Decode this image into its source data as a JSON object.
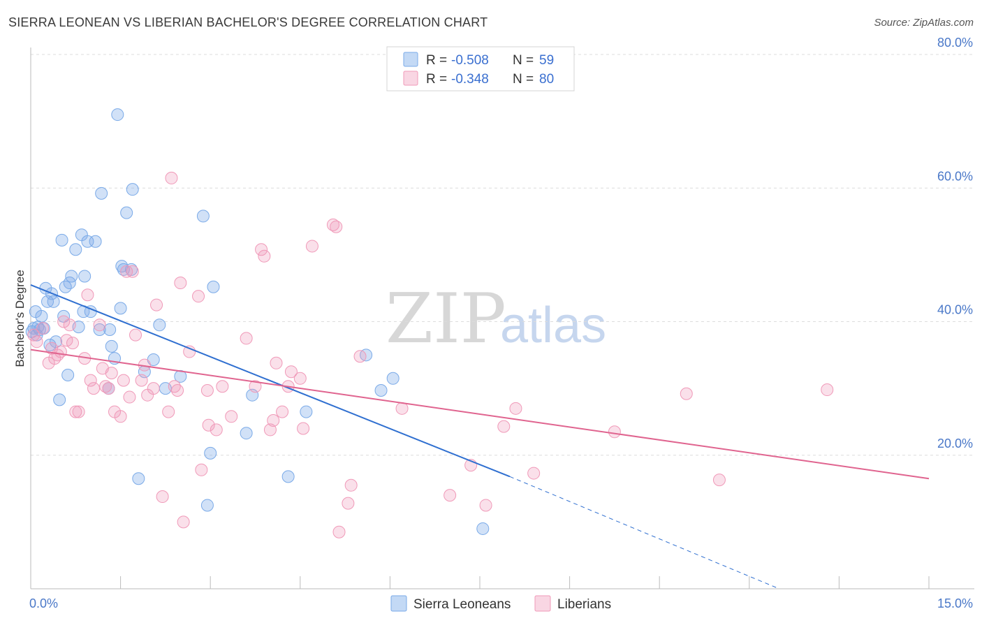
{
  "header": {
    "title": "SIERRA LEONEAN VS LIBERIAN BACHELOR'S DEGREE CORRELATION CHART",
    "source": "Source: ZipAtlas.com"
  },
  "watermark": {
    "zip": "ZIP",
    "atlas": "atlas"
  },
  "legend": {
    "r_label": "R =",
    "n_label": "N =",
    "rows": [
      {
        "r": "-0.508",
        "n": "59",
        "color": "#7aaae8"
      },
      {
        "r": "-0.348",
        "n": "80",
        "color": "#f099b8"
      }
    ]
  },
  "bottom_legend": [
    "Sierra Leoneans",
    "Liberians"
  ],
  "chart_data": {
    "type": "scatter",
    "title": "SIERRA LEONEAN VS LIBERIAN BACHELOR'S DEGREE CORRELATION CHART",
    "xlabel": "",
    "ylabel": "Bachelor's Degree",
    "xlim": [
      0,
      15
    ],
    "ylim": [
      0,
      80
    ],
    "x_tick_labels": [
      {
        "value": 0,
        "label": "0.0%"
      },
      {
        "value": 15,
        "label": "15.0%"
      }
    ],
    "y_tick_labels": [
      {
        "value": 20,
        "label": "20.0%"
      },
      {
        "value": 40,
        "label": "40.0%"
      },
      {
        "value": 60,
        "label": "60.0%"
      },
      {
        "value": 80,
        "label": "80.0%"
      }
    ],
    "series": [
      {
        "name": "Sierra Leoneans",
        "color": "#7aaae8",
        "line_color": "#2f6fd0",
        "r": -0.508,
        "n": 59,
        "trend": {
          "x0": 0,
          "y0": 45.5,
          "x1": 8.0,
          "y1": 16.8,
          "dash_x1": 12.5,
          "dash_y1": 0
        },
        "points": [
          [
            0.02,
            38.5
          ],
          [
            0.05,
            39.0
          ],
          [
            0.08,
            41.5
          ],
          [
            0.1,
            38.0
          ],
          [
            0.12,
            39.2
          ],
          [
            0.15,
            38.8
          ],
          [
            0.18,
            40.8
          ],
          [
            0.22,
            39.0
          ],
          [
            0.25,
            45.0
          ],
          [
            0.28,
            43.0
          ],
          [
            0.32,
            36.5
          ],
          [
            0.35,
            44.2
          ],
          [
            0.38,
            43.0
          ],
          [
            0.42,
            37.0
          ],
          [
            0.48,
            28.3
          ],
          [
            0.52,
            52.2
          ],
          [
            0.55,
            40.8
          ],
          [
            0.58,
            45.2
          ],
          [
            0.62,
            32.0
          ],
          [
            0.65,
            45.8
          ],
          [
            0.68,
            46.8
          ],
          [
            0.75,
            50.8
          ],
          [
            0.8,
            39.2
          ],
          [
            0.85,
            53.0
          ],
          [
            0.88,
            41.5
          ],
          [
            0.9,
            46.8
          ],
          [
            0.95,
            52.0
          ],
          [
            1.0,
            41.5
          ],
          [
            1.08,
            52.0
          ],
          [
            1.15,
            38.8
          ],
          [
            1.18,
            59.2
          ],
          [
            1.3,
            30.0
          ],
          [
            1.32,
            38.8
          ],
          [
            1.35,
            36.3
          ],
          [
            1.4,
            34.5
          ],
          [
            1.45,
            71.0
          ],
          [
            1.5,
            42.0
          ],
          [
            1.52,
            48.3
          ],
          [
            1.55,
            47.8
          ],
          [
            1.6,
            56.3
          ],
          [
            1.68,
            47.8
          ],
          [
            1.7,
            59.8
          ],
          [
            1.8,
            16.5
          ],
          [
            1.9,
            32.5
          ],
          [
            2.05,
            34.3
          ],
          [
            2.15,
            39.5
          ],
          [
            2.25,
            30.0
          ],
          [
            2.5,
            31.8
          ],
          [
            2.88,
            55.8
          ],
          [
            2.95,
            12.5
          ],
          [
            3.0,
            20.3
          ],
          [
            3.05,
            45.2
          ],
          [
            3.6,
            23.3
          ],
          [
            3.7,
            29.0
          ],
          [
            4.3,
            16.8
          ],
          [
            4.6,
            26.5
          ],
          [
            5.6,
            35.0
          ],
          [
            5.85,
            29.7
          ],
          [
            6.05,
            31.5
          ],
          [
            7.55,
            9.0
          ]
        ]
      },
      {
        "name": "Liberians",
        "color": "#f099b8",
        "line_color": "#e0648f",
        "r": -0.348,
        "n": 80,
        "trend": {
          "x0": 0,
          "y0": 35.8,
          "x1": 15.0,
          "y1": 16.5
        },
        "points": [
          [
            0.05,
            38.0
          ],
          [
            0.1,
            37.0
          ],
          [
            0.2,
            39.0
          ],
          [
            0.3,
            33.8
          ],
          [
            0.35,
            36.0
          ],
          [
            0.4,
            34.5
          ],
          [
            0.45,
            35.0
          ],
          [
            0.5,
            35.5
          ],
          [
            0.55,
            40.0
          ],
          [
            0.6,
            37.2
          ],
          [
            0.65,
            39.5
          ],
          [
            0.7,
            36.8
          ],
          [
            0.75,
            26.5
          ],
          [
            0.8,
            26.5
          ],
          [
            0.9,
            34.5
          ],
          [
            0.95,
            44.0
          ],
          [
            1.0,
            31.2
          ],
          [
            1.05,
            30.0
          ],
          [
            1.15,
            39.5
          ],
          [
            1.2,
            33.0
          ],
          [
            1.25,
            30.3
          ],
          [
            1.3,
            30.0
          ],
          [
            1.35,
            32.3
          ],
          [
            1.4,
            26.5
          ],
          [
            1.5,
            25.8
          ],
          [
            1.55,
            31.2
          ],
          [
            1.6,
            47.5
          ],
          [
            1.65,
            28.7
          ],
          [
            1.75,
            38.0
          ],
          [
            1.85,
            31.2
          ],
          [
            1.9,
            33.5
          ],
          [
            1.95,
            29.0
          ],
          [
            2.05,
            30.0
          ],
          [
            2.1,
            42.5
          ],
          [
            2.2,
            13.8
          ],
          [
            2.3,
            26.5
          ],
          [
            2.35,
            61.5
          ],
          [
            2.4,
            30.3
          ],
          [
            2.45,
            29.7
          ],
          [
            2.5,
            45.8
          ],
          [
            2.55,
            10.0
          ],
          [
            2.65,
            35.5
          ],
          [
            2.8,
            43.8
          ],
          [
            2.85,
            17.8
          ],
          [
            2.95,
            29.7
          ],
          [
            2.97,
            24.5
          ],
          [
            3.1,
            23.8
          ],
          [
            3.2,
            30.3
          ],
          [
            3.35,
            25.8
          ],
          [
            3.6,
            37.5
          ],
          [
            3.75,
            30.3
          ],
          [
            3.85,
            50.8
          ],
          [
            3.9,
            49.8
          ],
          [
            4.0,
            23.8
          ],
          [
            4.05,
            25.2
          ],
          [
            4.1,
            33.8
          ],
          [
            4.2,
            26.5
          ],
          [
            4.3,
            30.3
          ],
          [
            4.35,
            32.5
          ],
          [
            4.5,
            31.5
          ],
          [
            4.55,
            24.0
          ],
          [
            4.7,
            51.3
          ],
          [
            5.05,
            54.5
          ],
          [
            5.1,
            54.2
          ],
          [
            5.15,
            8.5
          ],
          [
            5.3,
            12.8
          ],
          [
            5.35,
            15.5
          ],
          [
            5.5,
            34.8
          ],
          [
            6.2,
            27.0
          ],
          [
            7.0,
            14.0
          ],
          [
            7.35,
            18.5
          ],
          [
            7.6,
            12.5
          ],
          [
            7.9,
            24.3
          ],
          [
            8.1,
            27.0
          ],
          [
            8.4,
            17.3
          ],
          [
            9.75,
            23.5
          ],
          [
            10.95,
            29.2
          ],
          [
            11.5,
            16.3
          ],
          [
            13.3,
            29.8
          ],
          [
            1.7,
            47.5
          ]
        ]
      }
    ]
  }
}
